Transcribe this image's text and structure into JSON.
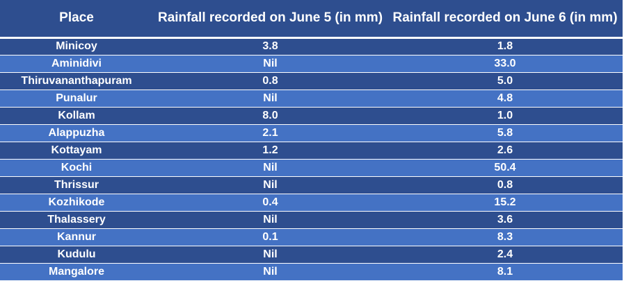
{
  "chart_data": {
    "type": "table",
    "columns": [
      "Place",
      "Rainfall recorded on June 5 (in mm)",
      "Rainfall recorded on June 6 (in mm)"
    ],
    "rows": [
      [
        "Minicoy",
        "3.8",
        "1.8"
      ],
      [
        "Aminidivi",
        "Nil",
        "33.0"
      ],
      [
        "Thiruvananthapuram",
        "0.8",
        "5.0"
      ],
      [
        "Punalur",
        "Nil",
        "4.8"
      ],
      [
        "Kollam",
        "8.0",
        "1.0"
      ],
      [
        "Alappuzha",
        "2.1",
        "5.8"
      ],
      [
        "Kottayam",
        "1.2",
        "2.6"
      ],
      [
        "Kochi",
        "Nil",
        "50.4"
      ],
      [
        "Thrissur",
        "Nil",
        "0.8"
      ],
      [
        "Kozhikode",
        "0.4",
        "15.2"
      ],
      [
        "Thalassery",
        "Nil",
        "3.6"
      ],
      [
        "Kannur",
        "0.1",
        "8.3"
      ],
      [
        "Kudulu",
        "Nil",
        "2.4"
      ],
      [
        "Mangalore",
        "Nil",
        "8.1"
      ]
    ],
    "colors": {
      "header_bg": "#2e4e8f",
      "row_dark": "#2e4e8f",
      "row_light": "#4472c4",
      "text": "#ffffff"
    }
  }
}
